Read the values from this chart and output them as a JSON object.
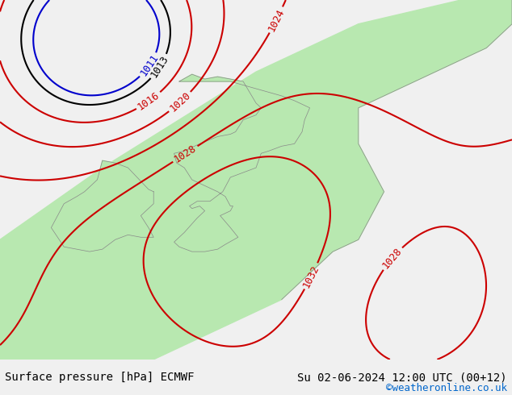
{
  "title_left": "Surface pressure [hPa] ECMWF",
  "title_right": "Su 02-06-2024 12:00 UTC (00+12)",
  "credit": "©weatheronline.co.uk",
  "credit_color": "#0066cc",
  "bg_color": "#d8d8e8",
  "land_color": "#b8e8b0",
  "coast_color": "#888888",
  "map_bg": "#e0e0ee",
  "footer_bg": "#f0f0f0",
  "footer_text_color": "#000000",
  "isobar_red_color": "#cc0000",
  "isobar_black_color": "#000000",
  "isobar_blue_color": "#0000cc",
  "isobar_lw": 1.5,
  "label_fontsize": 9,
  "footer_fontsize": 10,
  "credit_fontsize": 9
}
